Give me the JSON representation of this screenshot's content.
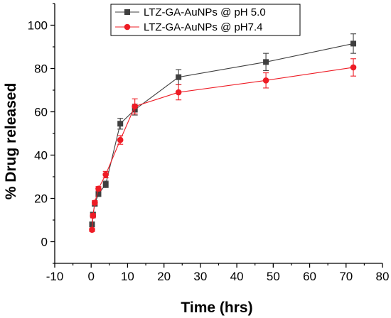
{
  "chart_data": {
    "type": "line",
    "title": "",
    "xlabel": "Time (hrs)",
    "ylabel": "% Drug released",
    "xlim": [
      -10,
      80
    ],
    "ylim": [
      -10,
      110
    ],
    "xticks": [
      -10,
      0,
      10,
      20,
      30,
      40,
      50,
      60,
      70,
      80
    ],
    "yticks": [
      0,
      20,
      40,
      60,
      80,
      100
    ],
    "grid": false,
    "legend_position": "top-center",
    "series": [
      {
        "name": "LTZ-GA-AuNPs @ pH 5.0",
        "color": "#3f3f3f",
        "marker": "square",
        "points": [
          {
            "x": 0.25,
            "y": 8.0,
            "err": 1.0
          },
          {
            "x": 0.5,
            "y": 12.5,
            "err": 1.0
          },
          {
            "x": 1,
            "y": 17.5,
            "err": 1.0
          },
          {
            "x": 2,
            "y": 22.0,
            "err": 1.0
          },
          {
            "x": 4,
            "y": 26.5,
            "err": 1.5
          },
          {
            "x": 8,
            "y": 54.5,
            "err": 2.5
          },
          {
            "x": 12,
            "y": 61.0,
            "err": 2.5
          },
          {
            "x": 24,
            "y": 76.0,
            "err": 3.5
          },
          {
            "x": 48,
            "y": 83.0,
            "err": 4.0
          },
          {
            "x": 72,
            "y": 91.5,
            "err": 4.5
          }
        ]
      },
      {
        "name": "LTZ-GA-AuNPs @ pH7.4",
        "color": "#ee1c25",
        "marker": "circle",
        "points": [
          {
            "x": 0.25,
            "y": 5.5,
            "err": 0.8
          },
          {
            "x": 0.5,
            "y": 12.0,
            "err": 1.0
          },
          {
            "x": 1,
            "y": 18.0,
            "err": 1.0
          },
          {
            "x": 2,
            "y": 24.5,
            "err": 1.0
          },
          {
            "x": 4,
            "y": 31.0,
            "err": 1.5
          },
          {
            "x": 8,
            "y": 47.0,
            "err": 2.0
          },
          {
            "x": 12,
            "y": 62.5,
            "err": 3.5
          },
          {
            "x": 24,
            "y": 69.0,
            "err": 3.5
          },
          {
            "x": 48,
            "y": 74.5,
            "err": 3.5
          },
          {
            "x": 72,
            "y": 80.5,
            "err": 4.0
          }
        ]
      }
    ]
  }
}
